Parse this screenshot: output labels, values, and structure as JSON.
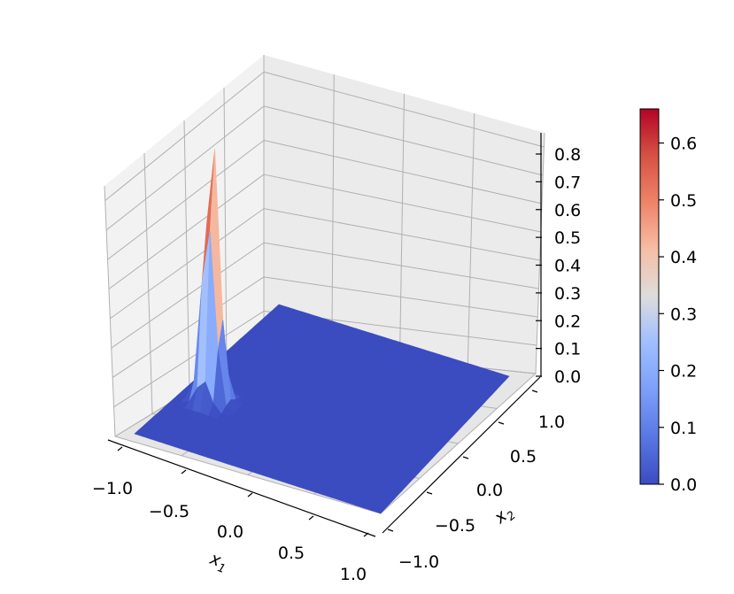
{
  "chart_data": {
    "type": "surface",
    "title": "",
    "xlabel": "x",
    "xlabel_sub": "1",
    "ylabel": "x",
    "ylabel_sub": "2",
    "zlabel": "",
    "xlim": [
      -1.0,
      1.0
    ],
    "ylim": [
      -1.0,
      1.0
    ],
    "zlim": [
      0.0,
      0.85
    ],
    "x_ticks": [
      "−1.0",
      "−0.5",
      "0.0",
      "0.5",
      "1.0"
    ],
    "x_tick_values": [
      -1.0,
      -0.5,
      0.0,
      0.5,
      1.0
    ],
    "y_ticks": [
      "−1.0",
      "−0.5",
      "0.0",
      "0.5",
      "1.0"
    ],
    "y_tick_values": [
      -1.0,
      -0.5,
      0.0,
      0.5,
      1.0
    ],
    "z_ticks": [
      "0.0",
      "0.1",
      "0.2",
      "0.3",
      "0.4",
      "0.5",
      "0.6",
      "0.7",
      "0.8"
    ],
    "z_tick_values": [
      0.0,
      0.1,
      0.2,
      0.3,
      0.4,
      0.5,
      0.6,
      0.7,
      0.8
    ],
    "grid": true,
    "colormap": "coolwarm",
    "colorbar": {
      "range": [
        0.0,
        0.66
      ],
      "ticks": [
        "0.0",
        "0.1",
        "0.2",
        "0.3",
        "0.4",
        "0.5",
        "0.6"
      ],
      "tick_values": [
        0.0,
        0.1,
        0.2,
        0.3,
        0.4,
        0.5,
        0.6
      ]
    },
    "surface": {
      "description_shape": "narrow peak on a flat zero plane",
      "peak_x": -0.75,
      "peak_y": -0.35,
      "peak_value": 0.82,
      "base_value": 0.0
    }
  }
}
